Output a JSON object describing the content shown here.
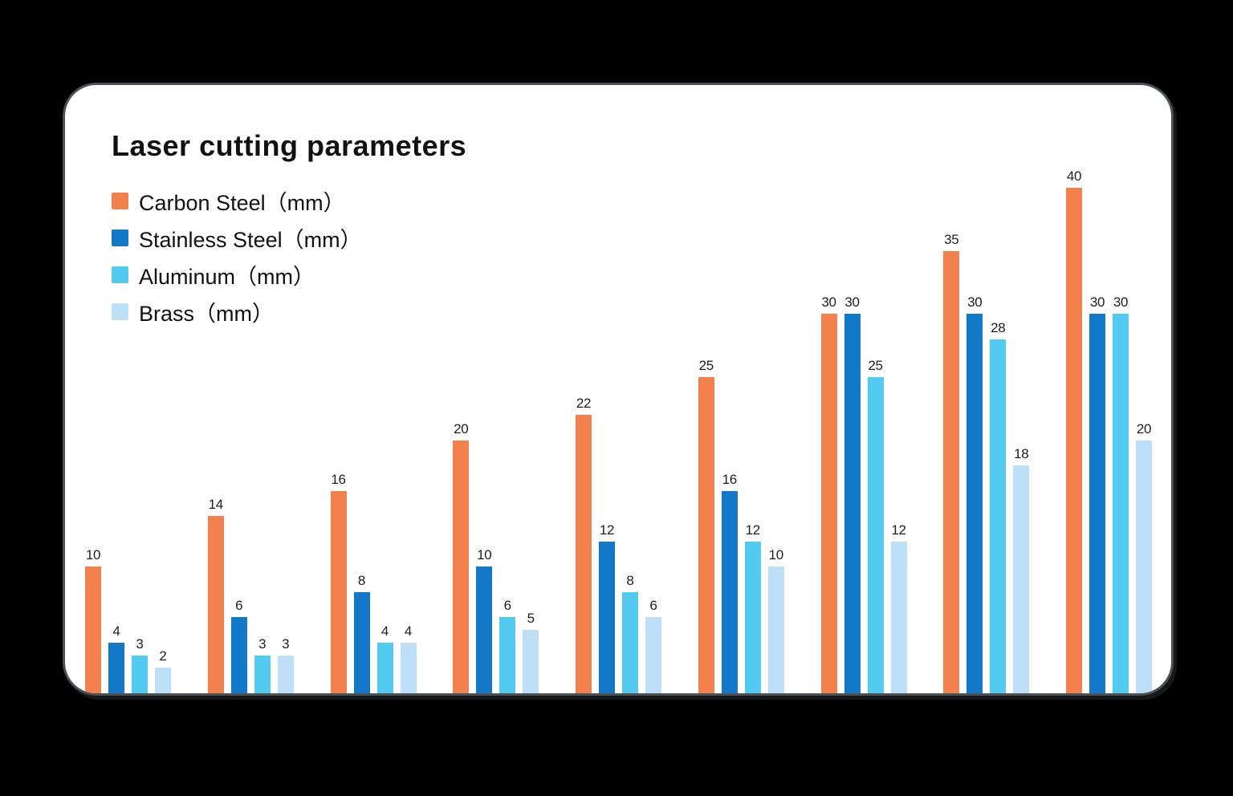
{
  "title": "Laser cutting parameters",
  "colors": {
    "page_background": "#000000",
    "card_background": "#ffffff",
    "card_border": "#4a5154",
    "text": "#111111",
    "value_label": "#1e1e1e"
  },
  "legend": [
    {
      "label": "Carbon Steel（mm）",
      "color": "#f2814e"
    },
    {
      "label": "Stainless Steel（mm）",
      "color": "#1478c8"
    },
    {
      "label": "Aluminum（mm）",
      "color": "#53caef"
    },
    {
      "label": "Brass（mm）",
      "color": "#bddff8"
    }
  ],
  "chart_data": {
    "type": "bar",
    "title": "Laser cutting parameters",
    "group_count": 9,
    "x_axis_labels_visible": false,
    "series": [
      {
        "name": "Carbon Steel（mm）",
        "color": "#f2814e",
        "values": [
          10,
          14,
          16,
          20,
          22,
          25,
          30,
          35,
          40
        ]
      },
      {
        "name": "Stainless Steel（mm）",
        "color": "#1478c8",
        "values": [
          4,
          6,
          8,
          10,
          12,
          16,
          30,
          30,
          30
        ]
      },
      {
        "name": "Aluminum（mm）",
        "color": "#53caef",
        "values": [
          3,
          3,
          4,
          6,
          8,
          12,
          25,
          28,
          30
        ]
      },
      {
        "name": "Brass（mm）",
        "color": "#bddff8",
        "values": [
          2,
          3,
          4,
          5,
          6,
          10,
          12,
          18,
          20
        ]
      }
    ],
    "ylim": [
      0,
      40
    ],
    "value_labels": true,
    "grid": false,
    "legend_position": "top-left"
  }
}
